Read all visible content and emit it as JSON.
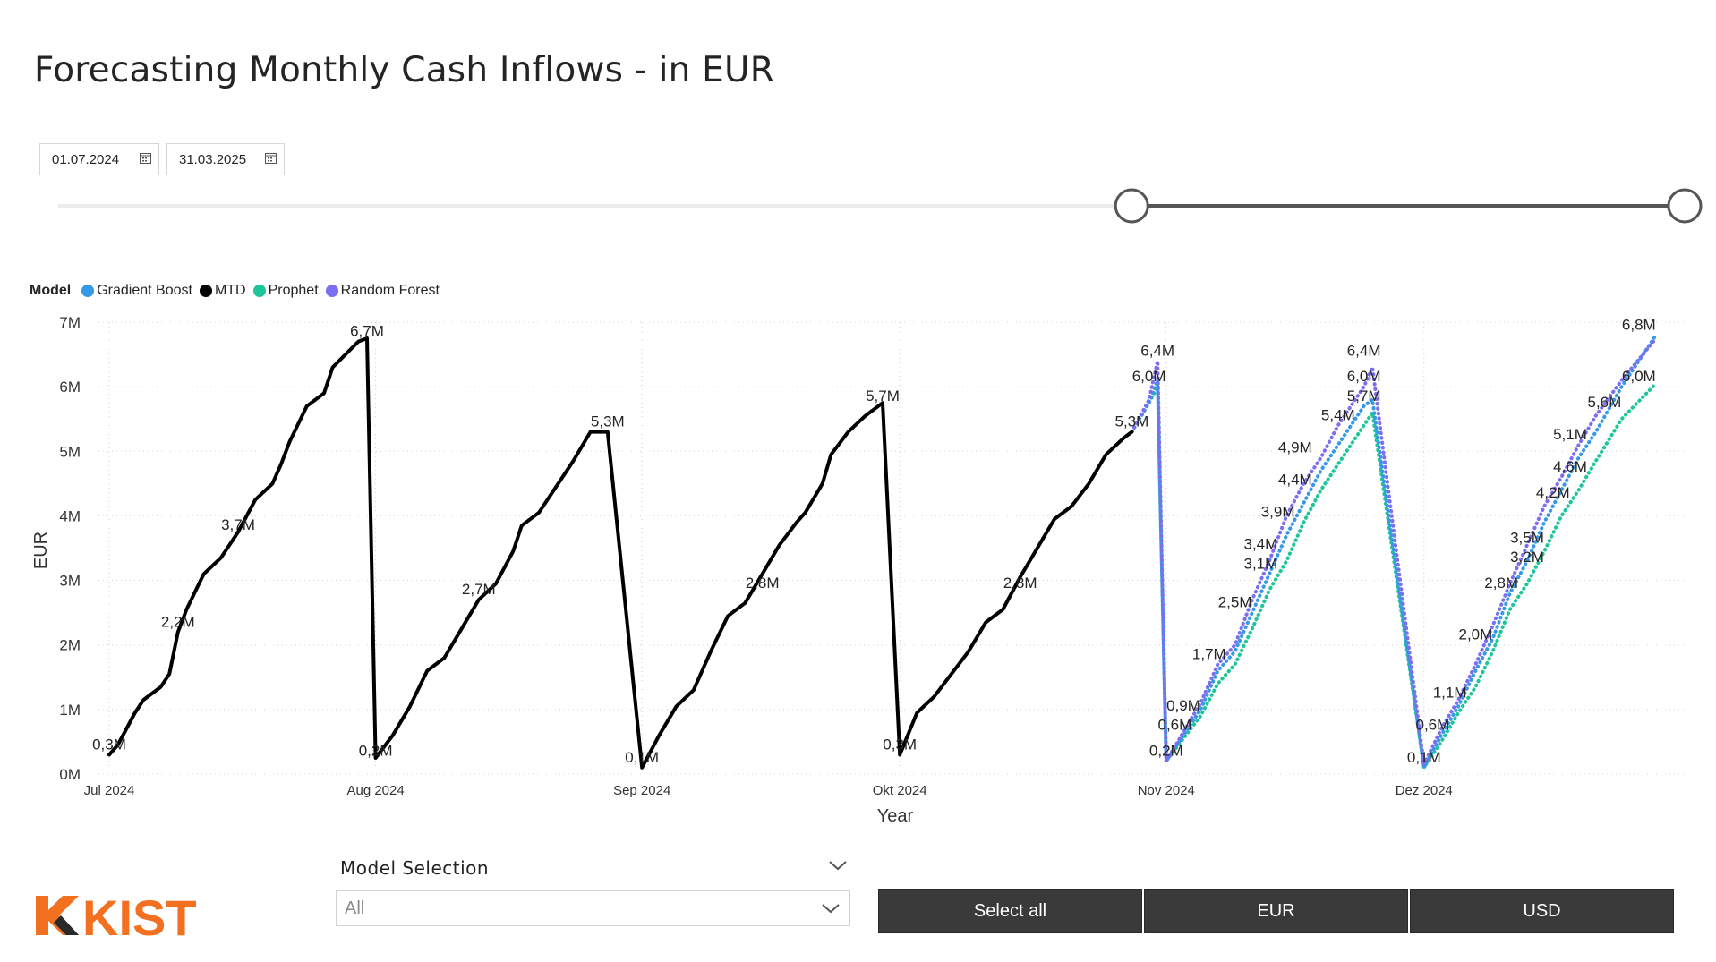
{
  "title": "Forecasting Monthly Cash Inflows - in EUR",
  "date_range": {
    "start": "01.07.2024",
    "end": "31.03.2025",
    "slider_start_fraction": 0.66,
    "slider_end_fraction": 1.0
  },
  "legend": {
    "title": "Model",
    "items": [
      {
        "name": "Gradient Boost",
        "color": "#3599e8"
      },
      {
        "name": "MTD",
        "color": "#000000"
      },
      {
        "name": "Prophet",
        "color": "#1ec59a"
      },
      {
        "name": "Random Forest",
        "color": "#7b6ef0"
      }
    ]
  },
  "model_selection": {
    "label": "Model Selection",
    "value": "All"
  },
  "buttons": {
    "select_all": "Select all",
    "eur": "EUR",
    "usd": "USD"
  },
  "logo": {
    "text": "KIST",
    "color": "#f37021"
  },
  "colors": {
    "mtd": "#000000",
    "gradient_boost": "#3599e8",
    "prophet": "#1ec59a",
    "random_forest": "#7b6ef0",
    "grid": "#d0d0d0"
  },
  "chart_data": {
    "type": "line",
    "title": "",
    "xlabel": "Year",
    "ylabel": "EUR",
    "x_range": [
      "2024-07-01",
      "2025-01-01"
    ],
    "ylim": [
      0,
      7000000
    ],
    "y_ticks": [
      0,
      1000000,
      2000000,
      3000000,
      4000000,
      5000000,
      6000000,
      7000000
    ],
    "y_tick_labels": [
      "0M",
      "1M",
      "2M",
      "3M",
      "4M",
      "5M",
      "6M",
      "7M"
    ],
    "x_ticks": [
      {
        "date": "2024-07-01",
        "label": "Jul 2024"
      },
      {
        "date": "2024-08-01",
        "label": "Aug 2024"
      },
      {
        "date": "2024-09-01",
        "label": "Sep 2024"
      },
      {
        "date": "2024-10-01",
        "label": "Okt 2024"
      },
      {
        "date": "2024-11-01",
        "label": "Nov 2024"
      },
      {
        "date": "2024-12-01",
        "label": "Dez 2024"
      }
    ],
    "grid": true,
    "legend_position": "top-left",
    "series": [
      {
        "name": "MTD",
        "style": "solid",
        "points": [
          [
            "2024-07-01",
            300000
          ],
          [
            "2024-07-02",
            450000
          ],
          [
            "2024-07-04",
            950000
          ],
          [
            "2024-07-05",
            1150000
          ],
          [
            "2024-07-07",
            1350000
          ],
          [
            "2024-07-08",
            1550000
          ],
          [
            "2024-07-09",
            2200000
          ],
          [
            "2024-07-10",
            2550000
          ],
          [
            "2024-07-12",
            3100000
          ],
          [
            "2024-07-14",
            3350000
          ],
          [
            "2024-07-16",
            3750000
          ],
          [
            "2024-07-18",
            4250000
          ],
          [
            "2024-07-20",
            4500000
          ],
          [
            "2024-07-21",
            4800000
          ],
          [
            "2024-07-22",
            5150000
          ],
          [
            "2024-07-24",
            5700000
          ],
          [
            "2024-07-26",
            5900000
          ],
          [
            "2024-07-27",
            6300000
          ],
          [
            "2024-07-30",
            6700000
          ],
          [
            "2024-07-31",
            6750000
          ],
          [
            "2024-08-01",
            250000
          ],
          [
            "2024-08-03",
            600000
          ],
          [
            "2024-08-05",
            1050000
          ],
          [
            "2024-08-07",
            1600000
          ],
          [
            "2024-08-09",
            1800000
          ],
          [
            "2024-08-11",
            2250000
          ],
          [
            "2024-08-13",
            2700000
          ],
          [
            "2024-08-15",
            2950000
          ],
          [
            "2024-08-17",
            3450000
          ],
          [
            "2024-08-18",
            3850000
          ],
          [
            "2024-08-20",
            4050000
          ],
          [
            "2024-08-22",
            4450000
          ],
          [
            "2024-08-24",
            4850000
          ],
          [
            "2024-08-26",
            5300000
          ],
          [
            "2024-08-28",
            5300000
          ],
          [
            "2024-09-01",
            100000
          ],
          [
            "2024-09-03",
            600000
          ],
          [
            "2024-09-05",
            1050000
          ],
          [
            "2024-09-07",
            1300000
          ],
          [
            "2024-09-09",
            1900000
          ],
          [
            "2024-09-11",
            2450000
          ],
          [
            "2024-09-13",
            2650000
          ],
          [
            "2024-09-15",
            3100000
          ],
          [
            "2024-09-17",
            3550000
          ],
          [
            "2024-09-19",
            3900000
          ],
          [
            "2024-09-20",
            4050000
          ],
          [
            "2024-09-22",
            4500000
          ],
          [
            "2024-09-23",
            4950000
          ],
          [
            "2024-09-25",
            5300000
          ],
          [
            "2024-09-27",
            5550000
          ],
          [
            "2024-09-29",
            5750000
          ],
          [
            "2024-10-01",
            300000
          ],
          [
            "2024-10-03",
            950000
          ],
          [
            "2024-10-05",
            1200000
          ],
          [
            "2024-10-07",
            1550000
          ],
          [
            "2024-10-09",
            1900000
          ],
          [
            "2024-10-11",
            2350000
          ],
          [
            "2024-10-13",
            2550000
          ],
          [
            "2024-10-15",
            3050000
          ],
          [
            "2024-10-17",
            3500000
          ],
          [
            "2024-10-19",
            3950000
          ],
          [
            "2024-10-21",
            4150000
          ],
          [
            "2024-10-23",
            4500000
          ],
          [
            "2024-10-25",
            4950000
          ],
          [
            "2024-10-27",
            5200000
          ],
          [
            "2024-10-28",
            5300000
          ]
        ]
      },
      {
        "name": "Gradient Boost",
        "style": "dotted",
        "points": [
          [
            "2024-10-28",
            5300000
          ],
          [
            "2024-10-30",
            5750000
          ],
          [
            "2024-10-31",
            6100000
          ],
          [
            "2024-11-01",
            200000
          ],
          [
            "2024-11-03",
            600000
          ],
          [
            "2024-11-05",
            1000000
          ],
          [
            "2024-11-07",
            1600000
          ],
          [
            "2024-11-09",
            1900000
          ],
          [
            "2024-11-11",
            2500000
          ],
          [
            "2024-11-13",
            3100000
          ],
          [
            "2024-11-15",
            3700000
          ],
          [
            "2024-11-17",
            4200000
          ],
          [
            "2024-11-19",
            4700000
          ],
          [
            "2024-11-21",
            5100000
          ],
          [
            "2024-11-24",
            5700000
          ],
          [
            "2024-11-25",
            5800000
          ],
          [
            "2024-12-01",
            100000
          ],
          [
            "2024-12-03",
            600000
          ],
          [
            "2024-12-05",
            1050000
          ],
          [
            "2024-12-07",
            1600000
          ],
          [
            "2024-12-09",
            2100000
          ],
          [
            "2024-12-11",
            2800000
          ],
          [
            "2024-12-13",
            3300000
          ],
          [
            "2024-12-15",
            3900000
          ],
          [
            "2024-12-17",
            4400000
          ],
          [
            "2024-12-19",
            4900000
          ],
          [
            "2024-12-21",
            5300000
          ],
          [
            "2024-12-24",
            6000000
          ],
          [
            "2024-12-28",
            6800000
          ]
        ]
      },
      {
        "name": "Prophet",
        "style": "dotted",
        "points": [
          [
            "2024-10-28",
            5300000
          ],
          [
            "2024-10-30",
            5750000
          ],
          [
            "2024-10-31",
            6000000
          ],
          [
            "2024-11-01",
            200000
          ],
          [
            "2024-11-03",
            550000
          ],
          [
            "2024-11-05",
            900000
          ],
          [
            "2024-11-07",
            1400000
          ],
          [
            "2024-11-09",
            1700000
          ],
          [
            "2024-11-11",
            2250000
          ],
          [
            "2024-11-13",
            2850000
          ],
          [
            "2024-11-15",
            3300000
          ],
          [
            "2024-11-17",
            3900000
          ],
          [
            "2024-11-19",
            4400000
          ],
          [
            "2024-11-21",
            4800000
          ],
          [
            "2024-11-24",
            5400000
          ],
          [
            "2024-11-25",
            5600000
          ],
          [
            "2024-12-01",
            100000
          ],
          [
            "2024-12-03",
            500000
          ],
          [
            "2024-12-05",
            950000
          ],
          [
            "2024-12-07",
            1350000
          ],
          [
            "2024-12-09",
            1900000
          ],
          [
            "2024-12-11",
            2550000
          ],
          [
            "2024-12-13",
            2950000
          ],
          [
            "2024-12-15",
            3450000
          ],
          [
            "2024-12-17",
            4000000
          ],
          [
            "2024-12-19",
            4400000
          ],
          [
            "2024-12-21",
            4850000
          ],
          [
            "2024-12-24",
            5500000
          ],
          [
            "2024-12-28",
            6050000
          ]
        ]
      },
      {
        "name": "Random Forest",
        "style": "dotted",
        "points": [
          [
            "2024-10-28",
            5300000
          ],
          [
            "2024-10-30",
            5800000
          ],
          [
            "2024-10-31",
            6400000
          ],
          [
            "2024-11-01",
            200000
          ],
          [
            "2024-11-03",
            650000
          ],
          [
            "2024-11-05",
            1100000
          ],
          [
            "2024-11-07",
            1700000
          ],
          [
            "2024-11-09",
            2000000
          ],
          [
            "2024-11-11",
            2700000
          ],
          [
            "2024-11-13",
            3300000
          ],
          [
            "2024-11-15",
            4000000
          ],
          [
            "2024-11-17",
            4500000
          ],
          [
            "2024-11-19",
            4900000
          ],
          [
            "2024-11-21",
            5400000
          ],
          [
            "2024-11-24",
            6000000
          ],
          [
            "2024-11-25",
            6300000
          ],
          [
            "2024-12-01",
            150000
          ],
          [
            "2024-12-03",
            700000
          ],
          [
            "2024-12-05",
            1150000
          ],
          [
            "2024-12-07",
            1700000
          ],
          [
            "2024-12-09",
            2300000
          ],
          [
            "2024-12-11",
            2950000
          ],
          [
            "2024-12-13",
            3550000
          ],
          [
            "2024-12-15",
            4150000
          ],
          [
            "2024-12-17",
            4600000
          ],
          [
            "2024-12-19",
            5100000
          ],
          [
            "2024-12-21",
            5550000
          ],
          [
            "2024-12-24",
            6100000
          ],
          [
            "2024-12-28",
            6750000
          ]
        ]
      }
    ],
    "data_labels": [
      {
        "date": "2024-07-01",
        "value": 300000,
        "text": "0,3M"
      },
      {
        "date": "2024-07-09",
        "value": 2200000,
        "text": "2,2M"
      },
      {
        "date": "2024-07-16",
        "value": 3700000,
        "text": "3,7M"
      },
      {
        "date": "2024-07-31",
        "value": 6700000,
        "text": "6,7M"
      },
      {
        "date": "2024-08-01",
        "value": 200000,
        "text": "0,2M"
      },
      {
        "date": "2024-08-13",
        "value": 2700000,
        "text": "2,7M"
      },
      {
        "date": "2024-08-28",
        "value": 5300000,
        "text": "5,3M"
      },
      {
        "date": "2024-09-01",
        "value": 100000,
        "text": "0,1M"
      },
      {
        "date": "2024-09-15",
        "value": 2800000,
        "text": "2,8M"
      },
      {
        "date": "2024-09-29",
        "value": 5700000,
        "text": "5,7M"
      },
      {
        "date": "2024-10-01",
        "value": 300000,
        "text": "0,3M"
      },
      {
        "date": "2024-10-15",
        "value": 2800000,
        "text": "2,8M"
      },
      {
        "date": "2024-10-28",
        "value": 5300000,
        "text": "5,3M"
      },
      {
        "date": "2024-10-30",
        "value": 6000000,
        "text": "6,0M"
      },
      {
        "date": "2024-10-31",
        "value": 6400000,
        "text": "6,4M"
      },
      {
        "date": "2024-11-01",
        "value": 200000,
        "text": "0,2M"
      },
      {
        "date": "2024-11-02",
        "value": 600000,
        "text": "0,6M"
      },
      {
        "date": "2024-11-03",
        "value": 900000,
        "text": "0,9M"
      },
      {
        "date": "2024-11-06",
        "value": 1700000,
        "text": "1,7M"
      },
      {
        "date": "2024-11-09",
        "value": 2500000,
        "text": "2,5M"
      },
      {
        "date": "2024-11-12",
        "value": 3100000,
        "text": "3,1M"
      },
      {
        "date": "2024-11-12",
        "value": 3400000,
        "text": "3,4M"
      },
      {
        "date": "2024-11-14",
        "value": 3900000,
        "text": "3,9M"
      },
      {
        "date": "2024-11-16",
        "value": 4400000,
        "text": "4,4M"
      },
      {
        "date": "2024-11-16",
        "value": 4900000,
        "text": "4,9M"
      },
      {
        "date": "2024-11-21",
        "value": 5400000,
        "text": "5,4M"
      },
      {
        "date": "2024-11-24",
        "value": 5700000,
        "text": "5,7M"
      },
      {
        "date": "2024-11-24",
        "value": 6000000,
        "text": "6,0M"
      },
      {
        "date": "2024-11-24",
        "value": 6400000,
        "text": "6,4M"
      },
      {
        "date": "2024-12-01",
        "value": 100000,
        "text": "0,1M"
      },
      {
        "date": "2024-12-02",
        "value": 600000,
        "text": "0,6M"
      },
      {
        "date": "2024-12-04",
        "value": 1100000,
        "text": "1,1M"
      },
      {
        "date": "2024-12-07",
        "value": 2000000,
        "text": "2,0M"
      },
      {
        "date": "2024-12-10",
        "value": 2800000,
        "text": "2,8M"
      },
      {
        "date": "2024-12-13",
        "value": 3200000,
        "text": "3,2M"
      },
      {
        "date": "2024-12-13",
        "value": 3500000,
        "text": "3,5M"
      },
      {
        "date": "2024-12-16",
        "value": 4200000,
        "text": "4,2M"
      },
      {
        "date": "2024-12-18",
        "value": 4600000,
        "text": "4,6M"
      },
      {
        "date": "2024-12-18",
        "value": 5100000,
        "text": "5,1M"
      },
      {
        "date": "2024-12-22",
        "value": 5600000,
        "text": "5,6M"
      },
      {
        "date": "2024-12-26",
        "value": 6000000,
        "text": "6,0M"
      },
      {
        "date": "2024-12-26",
        "value": 6800000,
        "text": "6,8M"
      }
    ]
  }
}
